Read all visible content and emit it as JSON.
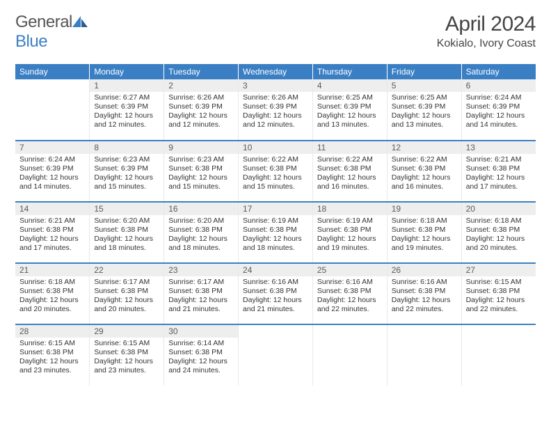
{
  "brand": {
    "part1": "General",
    "part2": "Blue"
  },
  "title": "April 2024",
  "location": "Kokialo, Ivory Coast",
  "colors": {
    "header_bg": "#3a7fc4",
    "header_text": "#ffffff",
    "daynum_bg": "#eeeeee",
    "daynum_text": "#5a5a5a",
    "body_text": "#333333",
    "divider": "#3a7fc4",
    "page_bg": "#ffffff"
  },
  "weekdays": [
    "Sunday",
    "Monday",
    "Tuesday",
    "Wednesday",
    "Thursday",
    "Friday",
    "Saturday"
  ],
  "weeks": [
    [
      {
        "n": "",
        "sr": "",
        "ss": "",
        "dl": ""
      },
      {
        "n": "1",
        "sr": "Sunrise: 6:27 AM",
        "ss": "Sunset: 6:39 PM",
        "dl": "Daylight: 12 hours and 12 minutes."
      },
      {
        "n": "2",
        "sr": "Sunrise: 6:26 AM",
        "ss": "Sunset: 6:39 PM",
        "dl": "Daylight: 12 hours and 12 minutes."
      },
      {
        "n": "3",
        "sr": "Sunrise: 6:26 AM",
        "ss": "Sunset: 6:39 PM",
        "dl": "Daylight: 12 hours and 12 minutes."
      },
      {
        "n": "4",
        "sr": "Sunrise: 6:25 AM",
        "ss": "Sunset: 6:39 PM",
        "dl": "Daylight: 12 hours and 13 minutes."
      },
      {
        "n": "5",
        "sr": "Sunrise: 6:25 AM",
        "ss": "Sunset: 6:39 PM",
        "dl": "Daylight: 12 hours and 13 minutes."
      },
      {
        "n": "6",
        "sr": "Sunrise: 6:24 AM",
        "ss": "Sunset: 6:39 PM",
        "dl": "Daylight: 12 hours and 14 minutes."
      }
    ],
    [
      {
        "n": "7",
        "sr": "Sunrise: 6:24 AM",
        "ss": "Sunset: 6:39 PM",
        "dl": "Daylight: 12 hours and 14 minutes."
      },
      {
        "n": "8",
        "sr": "Sunrise: 6:23 AM",
        "ss": "Sunset: 6:39 PM",
        "dl": "Daylight: 12 hours and 15 minutes."
      },
      {
        "n": "9",
        "sr": "Sunrise: 6:23 AM",
        "ss": "Sunset: 6:38 PM",
        "dl": "Daylight: 12 hours and 15 minutes."
      },
      {
        "n": "10",
        "sr": "Sunrise: 6:22 AM",
        "ss": "Sunset: 6:38 PM",
        "dl": "Daylight: 12 hours and 15 minutes."
      },
      {
        "n": "11",
        "sr": "Sunrise: 6:22 AM",
        "ss": "Sunset: 6:38 PM",
        "dl": "Daylight: 12 hours and 16 minutes."
      },
      {
        "n": "12",
        "sr": "Sunrise: 6:22 AM",
        "ss": "Sunset: 6:38 PM",
        "dl": "Daylight: 12 hours and 16 minutes."
      },
      {
        "n": "13",
        "sr": "Sunrise: 6:21 AM",
        "ss": "Sunset: 6:38 PM",
        "dl": "Daylight: 12 hours and 17 minutes."
      }
    ],
    [
      {
        "n": "14",
        "sr": "Sunrise: 6:21 AM",
        "ss": "Sunset: 6:38 PM",
        "dl": "Daylight: 12 hours and 17 minutes."
      },
      {
        "n": "15",
        "sr": "Sunrise: 6:20 AM",
        "ss": "Sunset: 6:38 PM",
        "dl": "Daylight: 12 hours and 18 minutes."
      },
      {
        "n": "16",
        "sr": "Sunrise: 6:20 AM",
        "ss": "Sunset: 6:38 PM",
        "dl": "Daylight: 12 hours and 18 minutes."
      },
      {
        "n": "17",
        "sr": "Sunrise: 6:19 AM",
        "ss": "Sunset: 6:38 PM",
        "dl": "Daylight: 12 hours and 18 minutes."
      },
      {
        "n": "18",
        "sr": "Sunrise: 6:19 AM",
        "ss": "Sunset: 6:38 PM",
        "dl": "Daylight: 12 hours and 19 minutes."
      },
      {
        "n": "19",
        "sr": "Sunrise: 6:18 AM",
        "ss": "Sunset: 6:38 PM",
        "dl": "Daylight: 12 hours and 19 minutes."
      },
      {
        "n": "20",
        "sr": "Sunrise: 6:18 AM",
        "ss": "Sunset: 6:38 PM",
        "dl": "Daylight: 12 hours and 20 minutes."
      }
    ],
    [
      {
        "n": "21",
        "sr": "Sunrise: 6:18 AM",
        "ss": "Sunset: 6:38 PM",
        "dl": "Daylight: 12 hours and 20 minutes."
      },
      {
        "n": "22",
        "sr": "Sunrise: 6:17 AM",
        "ss": "Sunset: 6:38 PM",
        "dl": "Daylight: 12 hours and 20 minutes."
      },
      {
        "n": "23",
        "sr": "Sunrise: 6:17 AM",
        "ss": "Sunset: 6:38 PM",
        "dl": "Daylight: 12 hours and 21 minutes."
      },
      {
        "n": "24",
        "sr": "Sunrise: 6:16 AM",
        "ss": "Sunset: 6:38 PM",
        "dl": "Daylight: 12 hours and 21 minutes."
      },
      {
        "n": "25",
        "sr": "Sunrise: 6:16 AM",
        "ss": "Sunset: 6:38 PM",
        "dl": "Daylight: 12 hours and 22 minutes."
      },
      {
        "n": "26",
        "sr": "Sunrise: 6:16 AM",
        "ss": "Sunset: 6:38 PM",
        "dl": "Daylight: 12 hours and 22 minutes."
      },
      {
        "n": "27",
        "sr": "Sunrise: 6:15 AM",
        "ss": "Sunset: 6:38 PM",
        "dl": "Daylight: 12 hours and 22 minutes."
      }
    ],
    [
      {
        "n": "28",
        "sr": "Sunrise: 6:15 AM",
        "ss": "Sunset: 6:38 PM",
        "dl": "Daylight: 12 hours and 23 minutes."
      },
      {
        "n": "29",
        "sr": "Sunrise: 6:15 AM",
        "ss": "Sunset: 6:38 PM",
        "dl": "Daylight: 12 hours and 23 minutes."
      },
      {
        "n": "30",
        "sr": "Sunrise: 6:14 AM",
        "ss": "Sunset: 6:38 PM",
        "dl": "Daylight: 12 hours and 24 minutes."
      },
      {
        "n": "",
        "sr": "",
        "ss": "",
        "dl": ""
      },
      {
        "n": "",
        "sr": "",
        "ss": "",
        "dl": ""
      },
      {
        "n": "",
        "sr": "",
        "ss": "",
        "dl": ""
      },
      {
        "n": "",
        "sr": "",
        "ss": "",
        "dl": ""
      }
    ]
  ]
}
